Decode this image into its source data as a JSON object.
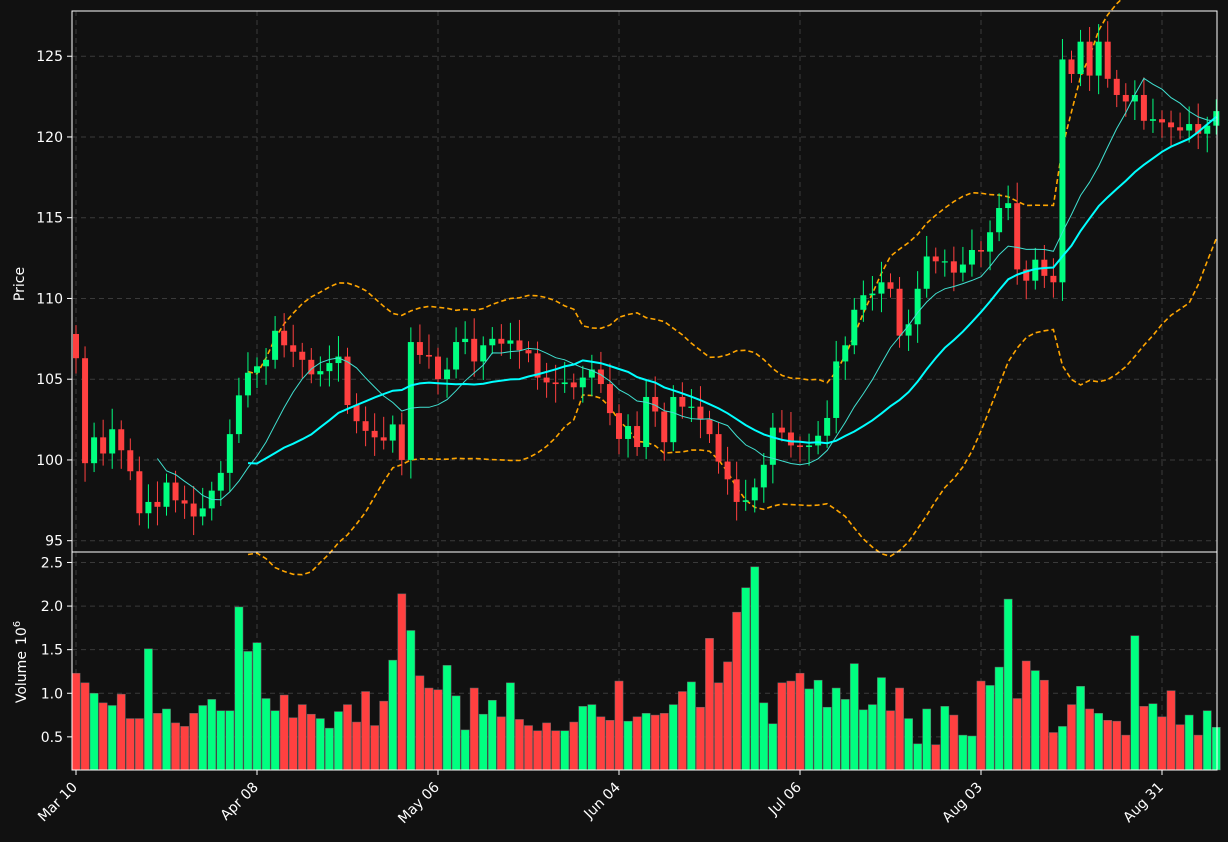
{
  "colors": {
    "background": "#111111",
    "axes_edge": "#ffffff",
    "grid": "#3a3a3a",
    "up": "#00ff80",
    "down": "#ff4040",
    "ma_fast": "#40e0d0",
    "ma_slow": "#00ffff",
    "band": "#ffa500",
    "volume_edge": "#666666"
  },
  "chart_data": {
    "type": "candlestick",
    "title": "",
    "xlabel": "",
    "ylabel_price": "Price",
    "ylabel_volume": "Volume",
    "volume_exponent": "6",
    "price_ylim": [
      94.3,
      127.8
    ],
    "volume_ylim": [
      0.12,
      2.62
    ],
    "price_ticks": [
      "95",
      "100",
      "105",
      "110",
      "115",
      "120",
      "125"
    ],
    "volume_ticks": [
      "0.5",
      "1.0",
      "1.5",
      "2.0",
      "2.5"
    ],
    "x_tick_labels": [
      {
        "label": "Mar 10",
        "index": 0
      },
      {
        "label": "Apr 08",
        "index": 20
      },
      {
        "label": "May 06",
        "index": 40
      },
      {
        "label": "Jun 04",
        "index": 60
      },
      {
        "label": "Jul 06",
        "index": 80
      },
      {
        "label": "Aug 03",
        "index": 100
      },
      {
        "label": "Aug 31",
        "index": 120
      }
    ],
    "num_bars": 127,
    "grid": true,
    "candles": {
      "open": [
        107.8,
        106.3,
        99.8,
        101.4,
        100.4,
        101.9,
        100.6,
        99.3,
        96.7,
        97.4,
        97.1,
        98.6,
        97.5,
        97.3,
        96.5,
        97.0,
        98.1,
        99.2,
        101.6,
        104.0,
        105.4,
        105.8,
        106.2,
        108.0,
        107.1,
        106.7,
        106.2,
        105.3,
        105.5,
        106.0,
        106.4,
        103.4,
        102.4,
        101.8,
        101.4,
        101.2,
        102.2,
        100.0,
        107.3,
        106.5,
        106.4,
        105.0,
        105.6,
        107.3,
        107.5,
        106.1,
        107.1,
        107.5,
        107.2,
        107.4,
        106.8,
        106.6,
        105.1,
        104.8,
        104.7,
        104.8,
        104.5,
        105.1,
        105.6,
        104.7,
        102.9,
        101.3,
        102.1,
        100.8,
        103.9,
        103.0,
        101.1,
        103.9,
        103.3,
        103.3,
        102.5,
        101.6,
        99.9,
        98.8,
        97.4,
        97.5,
        98.3,
        99.7,
        102.0,
        101.7,
        100.9,
        100.8,
        100.9,
        101.5,
        102.6,
        106.1,
        107.1,
        109.3,
        110.2,
        110.3,
        111.0,
        110.6,
        107.7,
        108.4,
        110.6,
        112.6,
        112.3,
        112.3,
        111.6,
        112.1,
        113.0,
        112.9,
        114.1,
        115.6,
        115.9,
        111.8,
        111.1,
        112.4,
        111.4,
        111.0,
        124.8,
        123.9,
        125.9,
        123.8,
        125.9,
        123.6,
        122.6,
        122.2,
        122.6,
        121.0,
        121.1,
        120.9,
        120.6,
        120.4,
        120.8,
        120.2,
        120.7
      ]
    },
    "moving_averages": [
      {
        "name": "",
        "period": 10
      },
      {
        "name": "",
        "period": 20
      }
    ],
    "bollinger": {
      "period": 20,
      "std": 2
    },
    "volume": [
      1.23,
      1.12,
      1.0,
      0.89,
      0.86,
      0.99,
      0.71,
      0.71,
      1.51,
      0.77,
      0.82,
      0.66,
      0.62,
      0.77,
      0.86,
      0.93,
      0.8,
      0.8,
      1.99,
      1.48,
      1.58,
      0.94,
      0.8,
      0.98,
      0.72,
      0.87,
      0.76,
      0.71,
      0.6,
      0.79,
      0.87,
      0.67,
      1.02,
      0.63,
      0.91,
      1.38,
      2.14,
      1.72,
      1.2,
      1.06,
      1.04,
      1.32,
      0.97,
      0.58,
      1.06,
      0.76,
      0.92,
      0.73,
      1.12,
      0.7,
      0.63,
      0.57,
      0.66,
      0.57,
      0.57,
      0.67,
      0.85,
      0.87,
      0.73,
      0.69,
      1.14,
      0.68,
      0.73,
      0.77,
      0.75,
      0.77,
      0.87,
      1.02,
      1.13,
      0.84,
      1.63,
      1.12,
      1.36,
      1.93,
      2.21,
      2.45,
      0.89,
      0.65,
      1.12,
      1.14,
      1.23,
      1.05,
      1.15,
      0.84,
      1.06,
      0.93,
      1.34,
      0.81,
      0.87,
      1.18,
      0.8,
      1.06,
      0.71,
      0.42,
      0.82,
      0.41,
      0.85,
      0.75,
      0.52,
      0.51,
      1.14,
      1.09,
      1.3,
      2.08,
      0.94,
      1.37,
      1.26,
      1.15,
      0.55,
      0.62,
      0.87,
      1.08,
      0.82,
      0.77,
      0.69,
      0.68,
      0.52,
      1.66,
      0.85,
      0.88,
      0.73,
      1.03,
      0.64,
      0.75,
      0.52,
      0.8,
      0.61
    ]
  }
}
